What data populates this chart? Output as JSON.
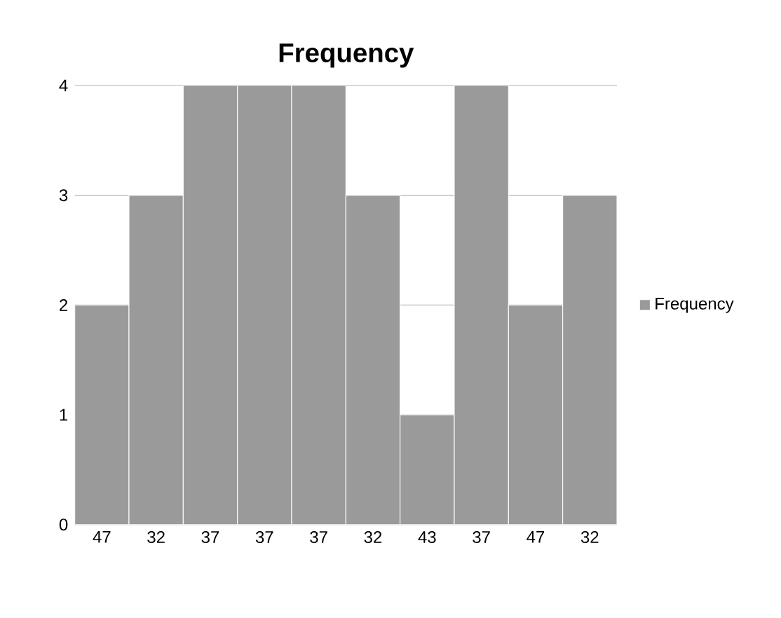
{
  "chart_data": {
    "type": "bar",
    "title": "Frequency",
    "categories": [
      "47",
      "32",
      "37",
      "37",
      "37",
      "32",
      "43",
      "37",
      "47",
      "32"
    ],
    "series": [
      {
        "name": "Frequency",
        "color": "#9a9a9a",
        "values": [
          2,
          3,
          4,
          4,
          4,
          3,
          1,
          4,
          2,
          3
        ]
      }
    ],
    "ylim": [
      0,
      4
    ],
    "yticks": [
      0,
      1,
      2,
      3,
      4
    ],
    "grid": "y",
    "legend": "right"
  }
}
